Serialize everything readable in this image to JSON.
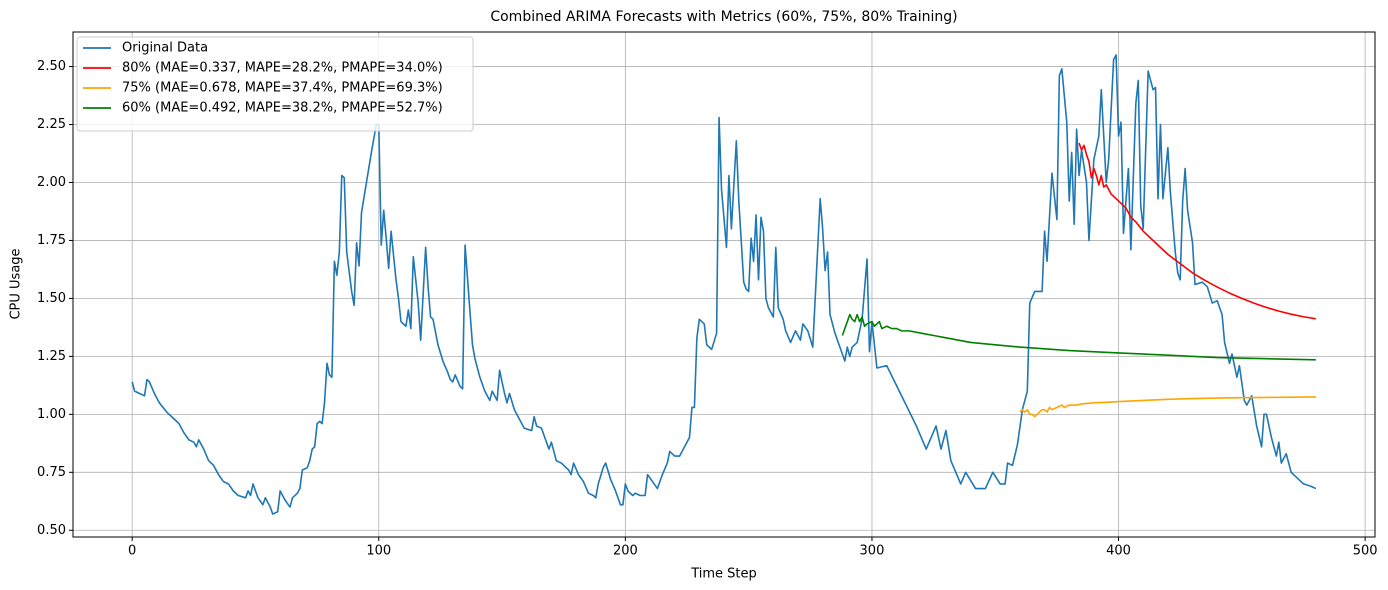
{
  "chart_data": {
    "type": "line",
    "title": "Combined ARIMA Forecasts with Metrics (60%, 75%, 80% Training)",
    "x_label": "Time Step",
    "y_label": "CPU Usage",
    "xlim": [
      -24,
      504
    ],
    "ylim": [
      0.471,
      2.649
    ],
    "xticks": [
      0,
      100,
      200,
      300,
      400,
      500
    ],
    "yticks": [
      {
        "value": 0.5,
        "label": "0.50"
      },
      {
        "value": 0.75,
        "label": "0.75"
      },
      {
        "value": 1.0,
        "label": "1.00"
      },
      {
        "value": 1.25,
        "label": "1.25"
      },
      {
        "value": 1.5,
        "label": "1.50"
      },
      {
        "value": 1.75,
        "label": "1.75"
      },
      {
        "value": 2.0,
        "label": "2.00"
      },
      {
        "value": 2.25,
        "label": "2.25"
      },
      {
        "value": 2.5,
        "label": "2.50"
      }
    ],
    "grid": true,
    "legend": "upper left",
    "series": [
      {
        "name": "Original Data",
        "color": "#1f77b4",
        "x": [
          0,
          1,
          3,
          5,
          6,
          7,
          9,
          11,
          14,
          17,
          19,
          21,
          23,
          25,
          26,
          27,
          29,
          31,
          33,
          35,
          37,
          39,
          41,
          43,
          46,
          47,
          48,
          49,
          51,
          53,
          54,
          56,
          57,
          59,
          60,
          62,
          64,
          65,
          67,
          68,
          69,
          71,
          72,
          73,
          74,
          75,
          76,
          77,
          78,
          79,
          80,
          81,
          82,
          83,
          84,
          85,
          86,
          87,
          89,
          90,
          91,
          92,
          93,
          95,
          97,
          99,
          100,
          101,
          102,
          103,
          104,
          105,
          107,
          108,
          109,
          111,
          112,
          113,
          114,
          116,
          117,
          119,
          120,
          121,
          122,
          124,
          126,
          128,
          129,
          130,
          131,
          133,
          134,
          135,
          137,
          138,
          139,
          141,
          143,
          145,
          146,
          148,
          149,
          151,
          152,
          153,
          155,
          157,
          159,
          162,
          163,
          164,
          166,
          167,
          169,
          170,
          172,
          174,
          177,
          178,
          179,
          181,
          183,
          185,
          187,
          188,
          189,
          191,
          192,
          194,
          196,
          197,
          198,
          199,
          200,
          201,
          203,
          204,
          206,
          208,
          209,
          211,
          213,
          215,
          217,
          218,
          220,
          222,
          224,
          226,
          227,
          228,
          229,
          230,
          232,
          233,
          235,
          237,
          238,
          239,
          241,
          242,
          243,
          245,
          246,
          248,
          249,
          250,
          251,
          252,
          253,
          254,
          255,
          256,
          257,
          258,
          260,
          261,
          262,
          264,
          265,
          267,
          269,
          271,
          272,
          274,
          276,
          279,
          280,
          281,
          282,
          283,
          285,
          287,
          289,
          290,
          291,
          292,
          294,
          296,
          298,
          299,
          300,
          302,
          306,
          312,
          318,
          322,
          326,
          328,
          330,
          332,
          336,
          338,
          342,
          346,
          349,
          352,
          354,
          355,
          357,
          359,
          361,
          363,
          364,
          366,
          369,
          370,
          371,
          373,
          375,
          376,
          377,
          379,
          380,
          381,
          382,
          383,
          384,
          385,
          387,
          388,
          390,
          392,
          393,
          395,
          396,
          398,
          399,
          400,
          401,
          402,
          404,
          405,
          407,
          408,
          409,
          410,
          412,
          414,
          415,
          416,
          417,
          418,
          420,
          421,
          423,
          424,
          425,
          426,
          427,
          428,
          430,
          431,
          434,
          436,
          438,
          440,
          442,
          443,
          445,
          446,
          448,
          449,
          451,
          452,
          454,
          456,
          458,
          459,
          460,
          462,
          464,
          465,
          466,
          468,
          470,
          472,
          475,
          478,
          480
        ],
        "values": [
          1.14,
          1.1,
          1.09,
          1.08,
          1.15,
          1.14,
          1.09,
          1.05,
          1.01,
          0.98,
          0.96,
          0.92,
          0.89,
          0.88,
          0.86,
          0.89,
          0.85,
          0.8,
          0.78,
          0.74,
          0.71,
          0.7,
          0.67,
          0.65,
          0.64,
          0.67,
          0.65,
          0.7,
          0.64,
          0.61,
          0.64,
          0.6,
          0.57,
          0.58,
          0.67,
          0.63,
          0.6,
          0.64,
          0.66,
          0.68,
          0.76,
          0.77,
          0.8,
          0.85,
          0.86,
          0.96,
          0.97,
          0.96,
          1.05,
          1.22,
          1.17,
          1.16,
          1.66,
          1.6,
          1.7,
          2.03,
          2.02,
          1.7,
          1.53,
          1.47,
          1.74,
          1.64,
          1.87,
          2.0,
          2.13,
          2.25,
          2.25,
          1.73,
          1.88,
          1.76,
          1.63,
          1.79,
          1.58,
          1.5,
          1.4,
          1.38,
          1.45,
          1.37,
          1.68,
          1.48,
          1.32,
          1.72,
          1.55,
          1.42,
          1.41,
          1.3,
          1.23,
          1.18,
          1.15,
          1.14,
          1.17,
          1.12,
          1.11,
          1.73,
          1.44,
          1.3,
          1.24,
          1.16,
          1.1,
          1.06,
          1.1,
          1.06,
          1.19,
          1.09,
          1.05,
          1.09,
          1.02,
          0.98,
          0.94,
          0.93,
          0.99,
          0.95,
          0.94,
          0.91,
          0.85,
          0.88,
          0.8,
          0.79,
          0.76,
          0.74,
          0.79,
          0.74,
          0.71,
          0.66,
          0.65,
          0.64,
          0.7,
          0.77,
          0.79,
          0.72,
          0.67,
          0.64,
          0.61,
          0.61,
          0.7,
          0.67,
          0.65,
          0.66,
          0.65,
          0.65,
          0.74,
          0.71,
          0.68,
          0.74,
          0.79,
          0.84,
          0.82,
          0.82,
          0.86,
          0.9,
          1.03,
          1.03,
          1.33,
          1.41,
          1.39,
          1.3,
          1.28,
          1.35,
          2.28,
          1.97,
          1.72,
          2.03,
          1.8,
          2.18,
          1.92,
          1.57,
          1.54,
          1.53,
          1.76,
          1.66,
          1.86,
          1.58,
          1.85,
          1.79,
          1.5,
          1.46,
          1.42,
          1.72,
          1.46,
          1.41,
          1.36,
          1.31,
          1.36,
          1.32,
          1.39,
          1.36,
          1.29,
          1.93,
          1.8,
          1.62,
          1.7,
          1.43,
          1.35,
          1.29,
          1.23,
          1.29,
          1.25,
          1.29,
          1.31,
          1.41,
          1.67,
          1.27,
          1.4,
          1.2,
          1.21,
          1.08,
          0.95,
          0.85,
          0.95,
          0.85,
          0.93,
          0.8,
          0.7,
          0.75,
          0.68,
          0.68,
          0.75,
          0.7,
          0.7,
          0.79,
          0.78,
          0.87,
          1.02,
          1.1,
          1.48,
          1.53,
          1.53,
          1.79,
          1.66,
          2.04,
          1.84,
          2.46,
          2.49,
          2.26,
          1.92,
          2.13,
          1.82,
          2.23,
          2.03,
          2.14,
          2.0,
          1.75,
          2.1,
          2.2,
          2.4,
          2.0,
          2.1,
          2.53,
          2.55,
          2.2,
          2.26,
          1.78,
          2.06,
          1.71,
          2.34,
          2.44,
          1.9,
          1.8,
          2.48,
          2.4,
          2.41,
          1.93,
          2.25,
          1.93,
          2.15,
          1.96,
          1.7,
          1.61,
          1.58,
          1.92,
          2.06,
          1.88,
          1.74,
          1.56,
          1.57,
          1.55,
          1.48,
          1.49,
          1.43,
          1.31,
          1.22,
          1.26,
          1.16,
          1.21,
          1.06,
          1.04,
          1.08,
          0.95,
          0.86,
          1.0,
          1.0,
          0.9,
          0.82,
          0.88,
          0.79,
          0.83,
          0.75,
          0.73,
          0.7,
          0.69,
          0.68
        ]
      },
      {
        "name": "80% (MAE=0.337, MAPE=28.2%, PMAPE=34.0%)",
        "color": "#ff0000",
        "x": [
          384,
          385,
          386,
          387,
          388,
          389,
          390,
          391,
          392,
          393,
          394,
          395,
          397,
          399,
          401,
          403,
          405,
          407,
          410,
          415,
          420,
          425,
          430,
          435,
          440,
          445,
          450,
          455,
          460,
          465,
          470,
          475,
          480
        ],
        "values": [
          2.17,
          2.14,
          2.16,
          2.12,
          2.09,
          2.02,
          2.06,
          2.03,
          1.99,
          2.03,
          1.98,
          1.99,
          1.95,
          1.93,
          1.91,
          1.89,
          1.85,
          1.83,
          1.79,
          1.74,
          1.69,
          1.65,
          1.61,
          1.578,
          1.549,
          1.523,
          1.5,
          1.479,
          1.461,
          1.445,
          1.432,
          1.421,
          1.412
        ]
      },
      {
        "name": "75% (MAE=0.678, MAPE=37.4%, PMAPE=69.3%)",
        "color": "#ffa500",
        "x": [
          360,
          361,
          362,
          363,
          364,
          365,
          366,
          367,
          368,
          369,
          370,
          371,
          372,
          373,
          375,
          377,
          378,
          380,
          383,
          385,
          390,
          395,
          400,
          410,
          420,
          430,
          440,
          450,
          460,
          470,
          480
        ],
        "values": [
          1.01,
          1.02,
          1.01,
          1.02,
          1.0,
          1.0,
          0.99,
          1.0,
          1.01,
          1.02,
          1.02,
          1.01,
          1.03,
          1.02,
          1.03,
          1.04,
          1.03,
          1.04,
          1.04,
          1.045,
          1.05,
          1.052,
          1.055,
          1.06,
          1.065,
          1.068,
          1.07,
          1.072,
          1.073,
          1.074,
          1.075
        ]
      },
      {
        "name": "60% (MAE=0.492, MAPE=38.2%, PMAPE=52.7%)",
        "color": "#008000",
        "x": [
          288,
          289,
          290,
          291,
          292,
          293,
          294,
          295,
          296,
          297,
          298,
          300,
          301,
          302,
          303,
          304,
          306,
          308,
          310,
          312,
          315,
          320,
          325,
          330,
          340,
          350,
          360,
          380,
          400,
          420,
          440,
          460,
          480
        ],
        "values": [
          1.34,
          1.37,
          1.4,
          1.43,
          1.41,
          1.4,
          1.43,
          1.4,
          1.42,
          1.38,
          1.39,
          1.4,
          1.38,
          1.39,
          1.4,
          1.37,
          1.38,
          1.37,
          1.37,
          1.36,
          1.36,
          1.35,
          1.34,
          1.33,
          1.31,
          1.3,
          1.29,
          1.275,
          1.265,
          1.255,
          1.245,
          1.24,
          1.235
        ]
      }
    ]
  }
}
